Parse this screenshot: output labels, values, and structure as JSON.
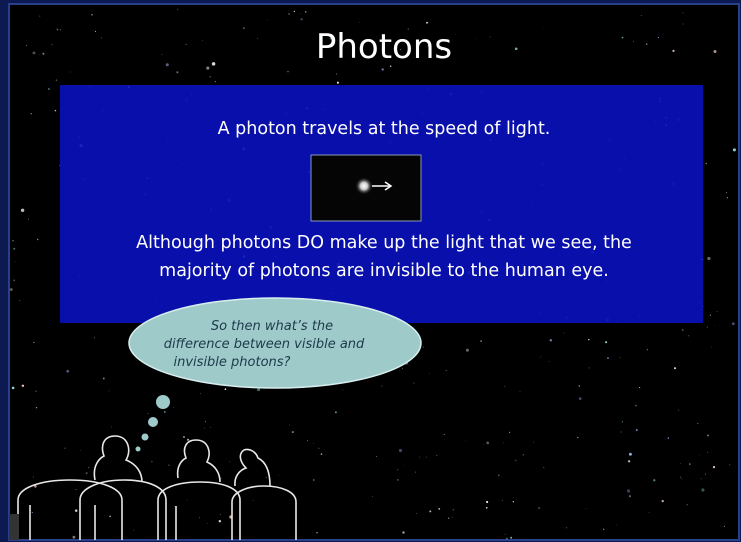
{
  "title": "Photons",
  "panel": {
    "caption": "A photon travels at the speed of light.",
    "body_lines": [
      "Although photons DO make up the light that we see, the",
      "majority of photons are invisible to the human eye."
    ]
  },
  "thought_bubble": {
    "lines": [
      "So then what’s the",
      "difference between visible and",
      "invisible photons?"
    ]
  }
}
